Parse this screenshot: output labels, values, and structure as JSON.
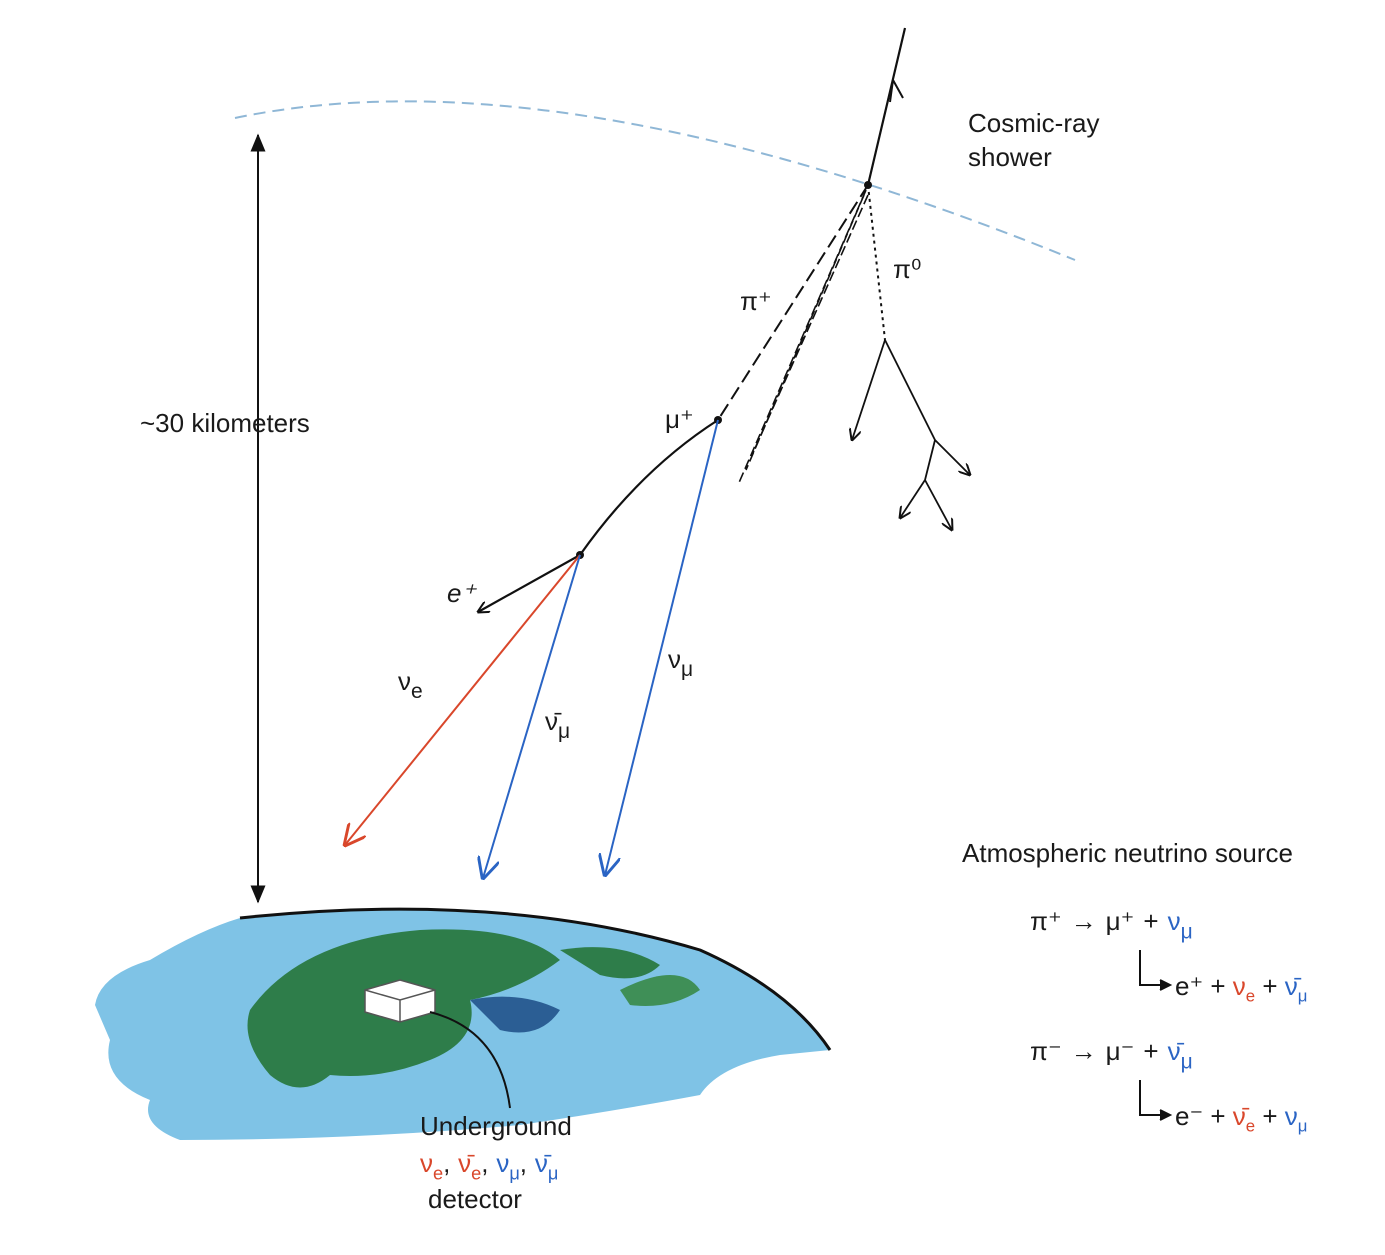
{
  "shower_label": [
    "Cosmic-ray",
    "shower"
  ],
  "particles": {
    "pi_plus": "π⁺",
    "pi_zero": "π⁰",
    "mu_plus": "μ⁺",
    "e_plus": "e⁺"
  },
  "nu_e": {
    "base": "ν",
    "sub": "e",
    "color": "#d9472b"
  },
  "nubar_mu": {
    "base": "ν̄",
    "sub": "μ",
    "color": "#2a64c4"
  },
  "nu_mu": {
    "base": "ν",
    "sub": "μ",
    "color": "#2a64c4"
  },
  "altitude_label": "~30 kilometers",
  "legend": {
    "title": "Atmospheric neutrino source",
    "equations": [
      [
        {
          "text": "π⁺"
        },
        {
          "text": "→"
        },
        {
          "text": "μ⁺"
        },
        {
          "text": "+"
        },
        {
          "base": "ν",
          "sub": "μ",
          "color": "#2a64c4"
        }
      ],
      [
        {
          "text": "e⁺"
        },
        {
          "text": "+"
        },
        {
          "base": "ν",
          "sub": "e",
          "color": "#d9472b"
        },
        {
          "text": "+"
        },
        {
          "base": "ν̄",
          "sub": "μ",
          "color": "#2a64c4"
        }
      ],
      [
        {
          "text": "π⁻"
        },
        {
          "text": "→"
        },
        {
          "text": "μ⁻"
        },
        {
          "text": "+"
        },
        {
          "base": "ν̄",
          "sub": "μ",
          "color": "#2a64c4"
        }
      ],
      [
        {
          "text": "e⁻"
        },
        {
          "text": "+"
        },
        {
          "base": "ν̄",
          "sub": "e",
          "color": "#d9472b"
        },
        {
          "text": "+"
        },
        {
          "base": "ν",
          "sub": "μ",
          "color": "#2a64c4"
        }
      ]
    ]
  },
  "detector": {
    "title": "Underground",
    "types": [
      {
        "base": "ν",
        "sub": "e",
        "color": "#d9472b"
      },
      {
        "text": ","
      },
      {
        "base": "ν̄",
        "sub": "e",
        "color": "#d9472b"
      },
      {
        "text": ","
      },
      {
        "base": "ν",
        "sub": "μ",
        "color": "#2a64c4"
      },
      {
        "text": ","
      },
      {
        "base": "ν̄",
        "sub": "μ",
        "color": "#2a64c4"
      }
    ],
    "caption": "detector"
  }
}
